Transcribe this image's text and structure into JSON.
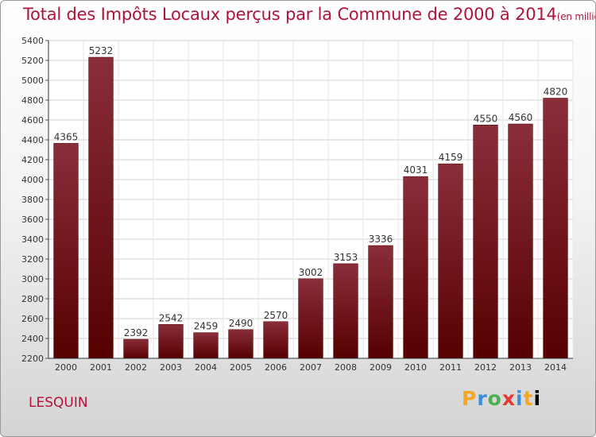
{
  "chart_data": {
    "type": "bar",
    "title": "Total des Impôts Locaux perçus par la Commune de 2000 à 2014",
    "unit_label": "(en milliers d'€)",
    "categories": [
      "2000",
      "2001",
      "2002",
      "2003",
      "2004",
      "2005",
      "2006",
      "2007",
      "2008",
      "2009",
      "2010",
      "2011",
      "2012",
      "2013",
      "2014"
    ],
    "values": [
      4365,
      5232,
      2392,
      2542,
      2459,
      2490,
      2570,
      3002,
      3153,
      3336,
      4031,
      4159,
      4550,
      4560,
      4820
    ],
    "ylim": [
      2200,
      5400
    ],
    "ytick_step": 200,
    "grid": true,
    "bar_color_top": "#8a2e3a",
    "bar_color_bottom": "#560000"
  },
  "commune": "LESQUIN",
  "logo": "Proxiti"
}
